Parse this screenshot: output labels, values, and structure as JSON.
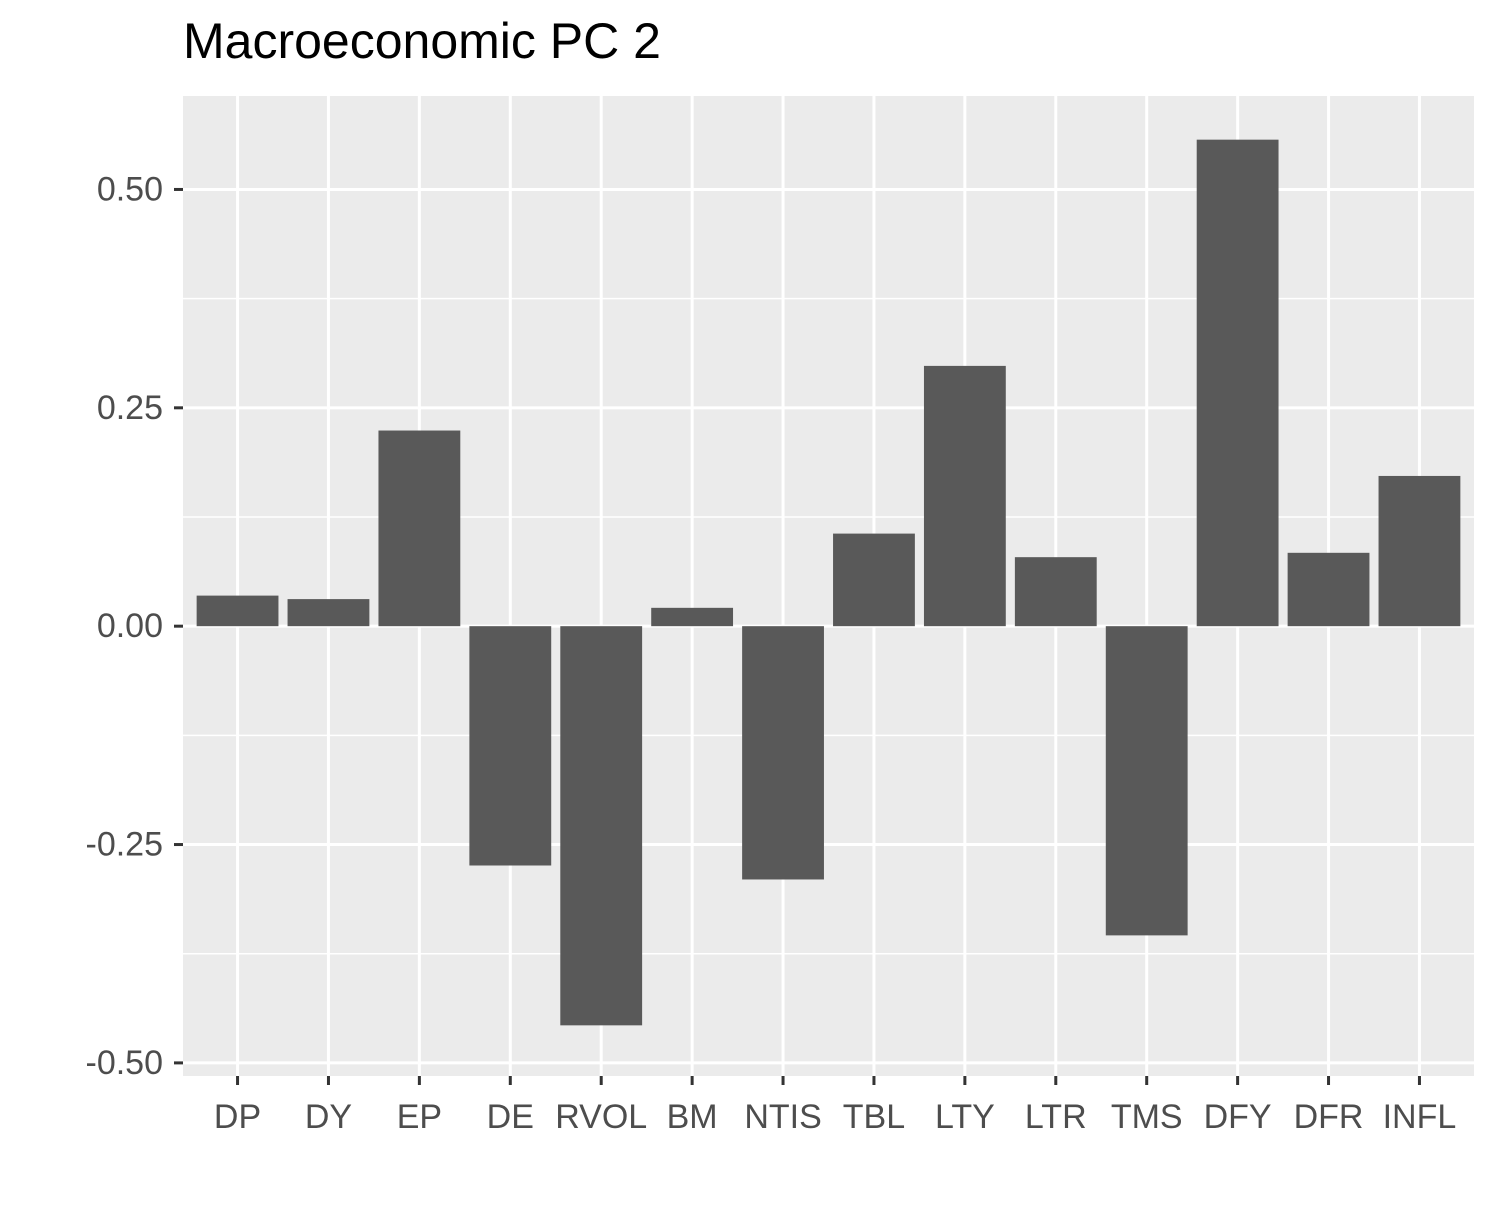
{
  "chart_data": {
    "type": "bar",
    "title": "Macroeconomic PC 2",
    "xlabel": "",
    "ylabel": "",
    "categories": [
      "DP",
      "DY",
      "EP",
      "DE",
      "RVOL",
      "BM",
      "NTIS",
      "TBL",
      "LTY",
      "LTR",
      "TMS",
      "DFY",
      "DFR",
      "INFL"
    ],
    "values": [
      0.035,
      0.031,
      0.224,
      -0.274,
      -0.457,
      0.021,
      -0.29,
      0.106,
      0.298,
      0.079,
      -0.354,
      0.557,
      0.084,
      0.172
    ],
    "ylim": [
      -0.515,
      0.607
    ],
    "yticks": [
      -0.5,
      -0.25,
      0.0,
      0.25,
      0.5
    ],
    "ytick_labels": [
      "-0.50",
      "-0.25",
      "0.00",
      "0.25",
      "0.50"
    ],
    "grid": true,
    "legend": "none",
    "colors": {
      "bar": "#595959",
      "panel": "#ebebeb",
      "grid": "#ffffff",
      "tick_text": "#4d4d4d",
      "tick_mark": "#333333"
    }
  }
}
